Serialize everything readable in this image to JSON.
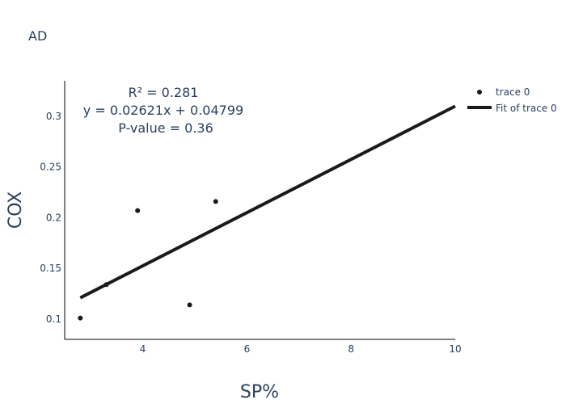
{
  "chart_data": {
    "type": "scatter",
    "title": "AD",
    "xlabel": "SP%",
    "ylabel": "COX",
    "xlim": [
      2.5,
      10
    ],
    "ylim": [
      0.08,
      0.335
    ],
    "x_ticks": [
      4,
      6,
      8,
      10
    ],
    "y_ticks": [
      0.1,
      0.15,
      0.2,
      0.25,
      0.3
    ],
    "y_tick_labels": [
      "0.1",
      "0.15",
      "0.2",
      "0.25",
      "0.3"
    ],
    "series": [
      {
        "name": "trace 0",
        "mode": "markers",
        "x": [
          2.8,
          3.3,
          3.9,
          4.9,
          5.4
        ],
        "y": [
          0.101,
          0.134,
          0.207,
          0.114,
          0.216
        ]
      },
      {
        "name": "Fit of trace 0",
        "mode": "line",
        "x": [
          2.8,
          10
        ],
        "y": [
          0.121,
          0.31
        ]
      }
    ],
    "annotations": [
      "R² = 0.281",
      "y = 0.02621x + 0.04799",
      "P-value = 0.36"
    ],
    "legend_position": "top-right",
    "grid": false,
    "colors": {
      "marker": "#1a1a1a",
      "fit_line": "#1a1a1a",
      "text": "#2a3f5f"
    }
  }
}
